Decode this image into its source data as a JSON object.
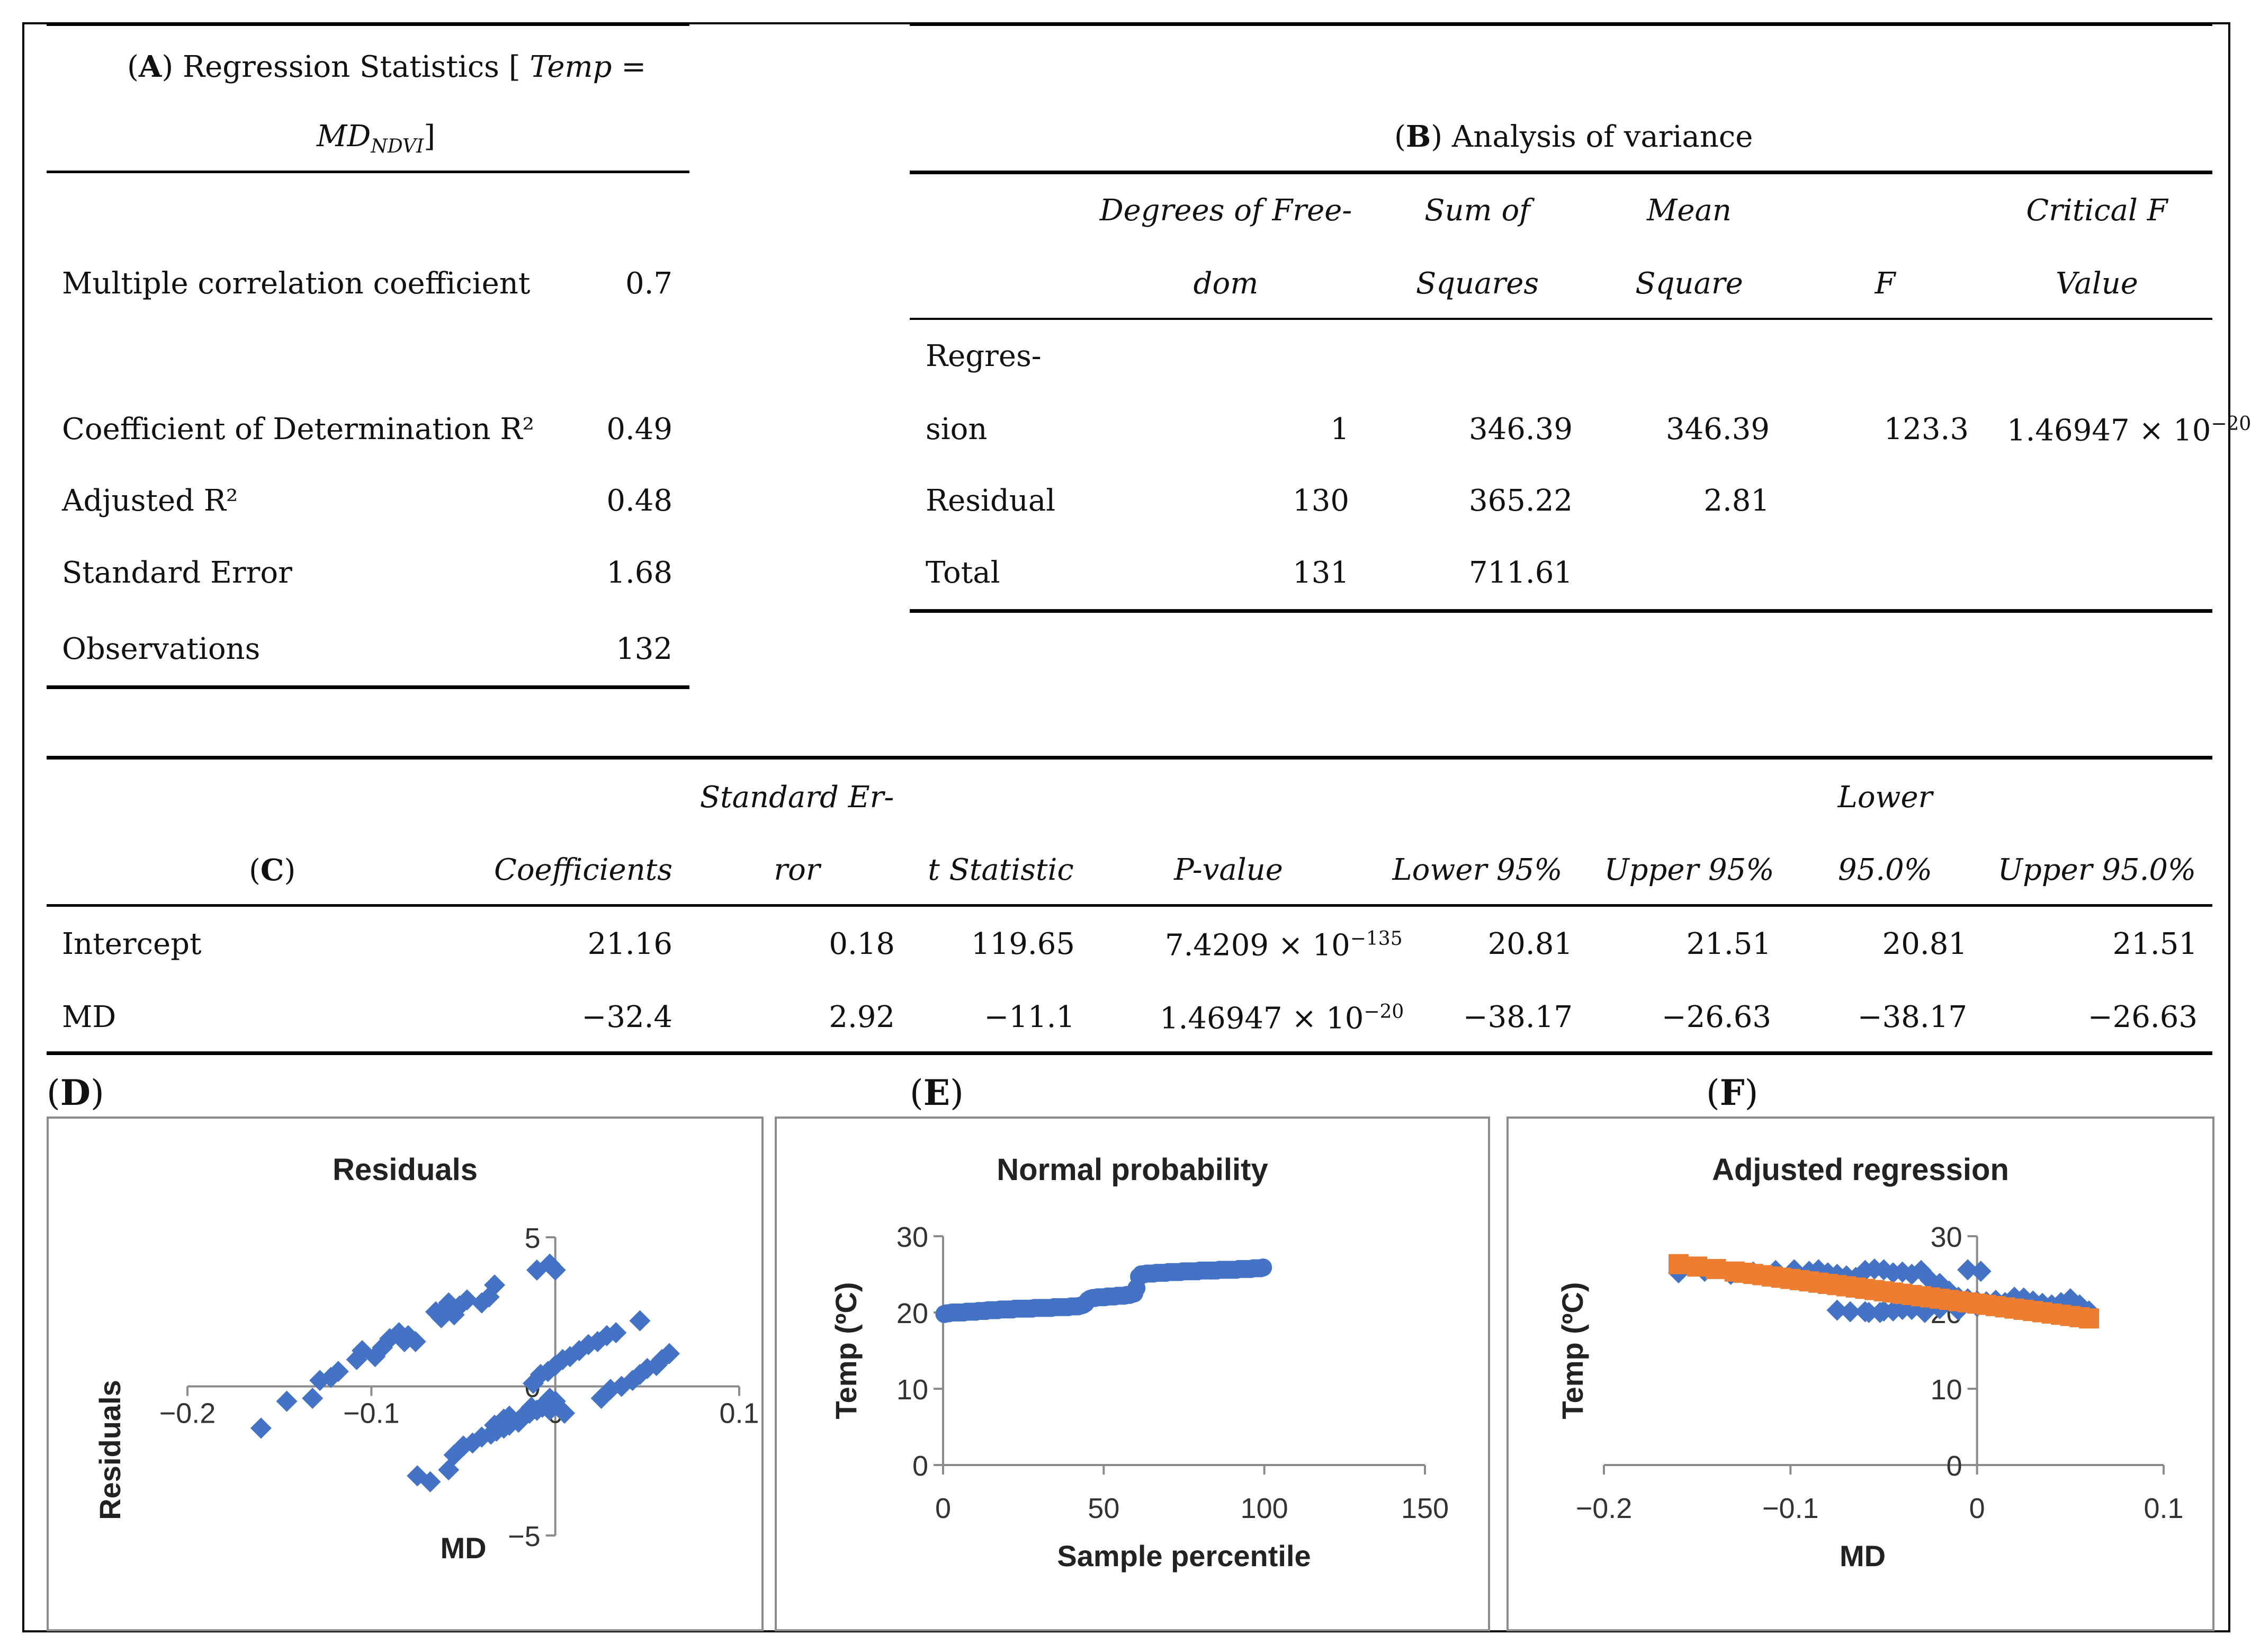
{
  "panel_a": {
    "label": "A",
    "title": "Regression Statistics",
    "formula_lhs": "Temp",
    "formula_eq": "=",
    "formula_rhs": "MD",
    "formula_sub": "NDVI",
    "rows": [
      {
        "name": "Multiple correlation coefficient",
        "value": "0.7"
      },
      {
        "name": "Coefficient of Determination R²",
        "value": "0.49"
      },
      {
        "name": "Adjusted R²",
        "value": "0.48"
      },
      {
        "name": "Standard Error",
        "value": "1.68"
      },
      {
        "name": "Observations",
        "value": "132"
      }
    ]
  },
  "panel_b": {
    "label": "B",
    "title": "Analysis of variance",
    "headers": {
      "df_line1": "Degrees of Free-",
      "df_line2": "dom",
      "ss_line1": "Sum of",
      "ss_line2": "Squares",
      "ms_line1": "Mean",
      "ms_line2": "Square",
      "f": "F",
      "cf_line1": "Critical F",
      "cf_line2": "Value"
    },
    "rows": [
      {
        "name_line1": "Regres-",
        "name_line2": "sion",
        "df": "1",
        "ss": "346.39",
        "ms": "346.39",
        "f": "123.3",
        "cf_mant": "1.46947 × 10",
        "cf_exp": "−20"
      },
      {
        "name_line1": "",
        "name_line2": "Residual",
        "df": "130",
        "ss": "365.22",
        "ms": "2.81",
        "f": "",
        "cf_mant": "",
        "cf_exp": ""
      },
      {
        "name_line1": "",
        "name_line2": "Total",
        "df": "131",
        "ss": "711.61",
        "ms": "",
        "f": "",
        "cf_mant": "",
        "cf_exp": ""
      }
    ]
  },
  "panel_c": {
    "label": "C",
    "headers": {
      "coef": "Coefficients",
      "se_line1": "Standard Er-",
      "se_line2": "ror",
      "t": "t Statistic",
      "p": "P-value",
      "l95": "Lower 95%",
      "u95": "Upper 95%",
      "l950_line1": "Lower",
      "l950_line2": "95.0%",
      "u950": "Upper 95.0%"
    },
    "rows": [
      {
        "name": "Intercept",
        "coef": "21.16",
        "se": "0.18",
        "t": "119.65",
        "p_mant": "7.4209 × 10",
        "p_exp": "−135",
        "l95": "20.81",
        "u95": "21.51",
        "l950": "20.81",
        "u950": "21.51"
      },
      {
        "name": "MD",
        "coef": "−32.4",
        "se": "2.92",
        "t": "−11.1",
        "p_mant": "1.46947 × 10",
        "p_exp": "−20",
        "l95": "−38.17",
        "u95": "−26.63",
        "l950": "−38.17",
        "u950": "−26.63"
      }
    ]
  },
  "panel_labels": {
    "d": "D",
    "e": "E",
    "f": "F"
  },
  "colors": {
    "blue": "#4472C4",
    "orange": "#ED7D31",
    "axis": "#8c8c8c"
  },
  "chart_data": [
    {
      "type": "scatter",
      "title": "Residuals",
      "xlabel": "MD",
      "ylabel": "Residuals",
      "xlim": [
        -0.2,
        0.1
      ],
      "ylim": [
        -5,
        5
      ],
      "xticks": [
        -0.2,
        -0.1,
        0,
        0.1
      ],
      "xtick_labels": [
        "−0.2",
        "−0.1",
        "0",
        "0.1"
      ],
      "yticks": [
        -5,
        0,
        5
      ],
      "ytick_labels": [
        "−5",
        "0",
        "5"
      ],
      "series": [
        {
          "color": "#4472C4",
          "marker": "diamond",
          "x": [
            -0.16,
            -0.146,
            -0.132,
            -0.128,
            -0.122,
            -0.118,
            -0.108,
            -0.105,
            -0.098,
            -0.094,
            -0.09,
            -0.085,
            -0.082,
            -0.08,
            -0.076,
            -0.065,
            -0.062,
            -0.06,
            -0.058,
            -0.055,
            -0.052,
            -0.048,
            -0.04,
            -0.036,
            -0.033,
            -0.01,
            -0.003,
            0.0,
            -0.075,
            -0.068,
            -0.058,
            -0.055,
            -0.05,
            -0.045,
            -0.04,
            -0.035,
            -0.032,
            -0.028,
            -0.025,
            -0.02,
            -0.017,
            -0.014,
            -0.01,
            -0.007,
            -0.005,
            -0.003,
            0.0,
            0.005,
            -0.012,
            -0.008,
            -0.004,
            0.0,
            0.004,
            0.008,
            0.013,
            0.018,
            0.023,
            0.028,
            0.033,
            -0.033,
            -0.028,
            -0.025,
            -0.02,
            -0.016,
            -0.013,
            -0.01,
            -0.006,
            -0.003,
            0.0,
            0.025,
            0.03,
            0.036,
            0.042,
            0.046,
            0.05,
            0.055,
            0.058,
            0.062,
            0.046
          ],
          "y": [
            -1.4,
            -0.5,
            -0.4,
            0.2,
            0.3,
            0.5,
            0.9,
            1.2,
            1.0,
            1.3,
            1.6,
            1.8,
            1.5,
            1.7,
            1.5,
            2.5,
            2.3,
            2.6,
            2.8,
            2.4,
            2.7,
            2.9,
            2.8,
            3.0,
            3.4,
            3.9,
            4.1,
            3.9,
            -3.0,
            -3.2,
            -2.8,
            -2.3,
            -2.0,
            -1.9,
            -1.7,
            -1.6,
            -1.5,
            -1.4,
            -1.3,
            -1.2,
            -1.0,
            -0.9,
            -0.8,
            -0.7,
            -0.6,
            -0.8,
            -0.5,
            -0.9,
            0.1,
            0.4,
            0.5,
            0.7,
            0.9,
            1.0,
            1.2,
            1.4,
            1.5,
            1.7,
            1.8,
            -1.3,
            -1.1,
            -1.0,
            -1.2,
            -0.9,
            -0.7,
            -0.8,
            -0.6,
            -0.4,
            -0.5,
            -0.4,
            -0.1,
            0.0,
            0.2,
            0.4,
            0.6,
            0.7,
            0.9,
            1.1,
            2.2
          ]
        }
      ]
    },
    {
      "type": "scatter",
      "title": "Normal probability",
      "xlabel": "Sample percentile",
      "ylabel": "Temp (ºC)",
      "xlim": [
        0,
        150
      ],
      "ylim": [
        0,
        30
      ],
      "xticks": [
        0,
        50,
        100,
        150
      ],
      "xtick_labels": [
        "0",
        "50",
        "100",
        "150"
      ],
      "yticks": [
        0,
        10,
        20,
        30
      ],
      "ytick_labels": [
        "0",
        "10",
        "20",
        "30"
      ],
      "series": [
        {
          "color": "#4472C4",
          "marker": "circle",
          "x": [
            0.4,
            1.1,
            1.9,
            2.7,
            3.4,
            4.2,
            4.9,
            5.7,
            6.4,
            7.2,
            8.0,
            8.7,
            9.5,
            10.2,
            11.0,
            11.7,
            12.5,
            13.3,
            14.0,
            14.8,
            15.5,
            16.3,
            17.0,
            17.8,
            18.6,
            19.3,
            20.1,
            20.8,
            21.6,
            22.3,
            23.1,
            23.9,
            24.6,
            25.4,
            26.1,
            26.9,
            27.7,
            28.4,
            29.2,
            29.9,
            30.7,
            31.4,
            32.2,
            33.0,
            33.7,
            34.5,
            35.2,
            36.0,
            36.7,
            37.5,
            38.3,
            39.0,
            39.8,
            40.5,
            41.3,
            42.0,
            42.8,
            43.6,
            44.3,
            45.1,
            45.8,
            46.6,
            47.3,
            48.1,
            48.9,
            49.6,
            50.4,
            51.1,
            51.9,
            52.7,
            53.4,
            54.2,
            54.9,
            55.7,
            56.4,
            57.2,
            58.0,
            58.7,
            59.5,
            60.2,
            61.0,
            61.7,
            62.5,
            63.3,
            64.0,
            64.8,
            65.5,
            66.3,
            67.0,
            67.8,
            68.6,
            69.3,
            70.1,
            70.8,
            71.6,
            72.3,
            73.1,
            73.9,
            74.6,
            75.4,
            76.1,
            76.9,
            77.7,
            78.4,
            79.2,
            79.9,
            80.7,
            81.4,
            82.2,
            83.0,
            83.7,
            84.5,
            85.2,
            86.0,
            86.7,
            87.5,
            88.3,
            89.0,
            89.8,
            90.5,
            91.3,
            92.0,
            92.8,
            93.6,
            94.3,
            95.1,
            95.8,
            96.6,
            97.3,
            98.1,
            98.9,
            99.6
          ],
          "y": [
            19.8,
            19.9,
            19.9,
            20.0,
            20.0,
            20.0,
            20.0,
            20.0,
            20.0,
            20.1,
            20.1,
            20.1,
            20.1,
            20.1,
            20.2,
            20.2,
            20.2,
            20.2,
            20.3,
            20.3,
            20.3,
            20.3,
            20.3,
            20.4,
            20.4,
            20.4,
            20.4,
            20.4,
            20.4,
            20.5,
            20.5,
            20.5,
            20.5,
            20.5,
            20.5,
            20.5,
            20.5,
            20.6,
            20.6,
            20.6,
            20.6,
            20.6,
            20.6,
            20.6,
            20.6,
            20.7,
            20.7,
            20.7,
            20.7,
            20.7,
            20.7,
            20.7,
            20.8,
            20.8,
            20.8,
            20.8,
            20.9,
            21.0,
            21.2,
            21.6,
            21.8,
            21.9,
            21.9,
            22.0,
            22.0,
            22.0,
            22.0,
            22.1,
            22.1,
            22.1,
            22.1,
            22.2,
            22.2,
            22.2,
            22.2,
            22.3,
            22.3,
            22.4,
            22.5,
            23.2,
            24.7,
            25.0,
            25.0,
            25.1,
            25.1,
            25.1,
            25.1,
            25.2,
            25.2,
            25.2,
            25.2,
            25.2,
            25.3,
            25.3,
            25.3,
            25.3,
            25.3,
            25.3,
            25.4,
            25.4,
            25.4,
            25.4,
            25.4,
            25.4,
            25.4,
            25.5,
            25.5,
            25.5,
            25.5,
            25.5,
            25.5,
            25.5,
            25.5,
            25.6,
            25.6,
            25.6,
            25.6,
            25.6,
            25.6,
            25.6,
            25.6,
            25.7,
            25.7,
            25.7,
            25.7,
            25.7,
            25.7,
            25.8,
            25.8,
            25.8,
            25.8,
            25.9
          ]
        }
      ]
    },
    {
      "type": "scatter",
      "title": "Adjusted regression",
      "xlabel": "MD",
      "ylabel": "Temp (ºC)",
      "xlim": [
        -0.2,
        0.1
      ],
      "ylim": [
        0,
        30
      ],
      "xticks": [
        -0.2,
        -0.1,
        0,
        0.1
      ],
      "xtick_labels": [
        "−0.2",
        "−0.1",
        "0",
        "0.1"
      ],
      "yticks": [
        0,
        10,
        20,
        30
      ],
      "ytick_labels": [
        "0",
        "10",
        "20",
        "30"
      ],
      "series": [
        {
          "color": "#4472C4",
          "marker": "diamond",
          "x": [
            -0.16,
            -0.146,
            -0.132,
            -0.12,
            -0.108,
            -0.098,
            -0.09,
            -0.085,
            -0.08,
            -0.075,
            -0.07,
            -0.065,
            -0.06,
            -0.055,
            -0.05,
            -0.045,
            -0.04,
            -0.035,
            -0.03,
            -0.025,
            -0.02,
            -0.015,
            -0.01,
            -0.005,
            0.0,
            0.005,
            0.01,
            0.015,
            0.02,
            0.025,
            0.03,
            0.035,
            0.04,
            0.045,
            0.05,
            0.055,
            0.06,
            -0.075,
            -0.068,
            -0.058,
            -0.05,
            -0.04,
            -0.03,
            -0.02,
            -0.01,
            0.0,
            -0.06,
            -0.052,
            -0.045,
            -0.035,
            -0.028,
            -0.005,
            0.002
          ],
          "y": [
            25.2,
            25.4,
            25.0,
            25.3,
            25.5,
            25.6,
            25.4,
            25.6,
            25.2,
            25.0,
            24.8,
            24.6,
            25.5,
            25.7,
            25.6,
            25.2,
            25.3,
            25.0,
            25.5,
            24.2,
            23.8,
            22.8,
            22.0,
            21.8,
            21.5,
            21.4,
            21.6,
            21.3,
            22.0,
            21.9,
            21.5,
            21.2,
            21.0,
            21.3,
            21.8,
            21.0,
            20.2,
            20.3,
            20.1,
            20.0,
            20.2,
            20.4,
            20.6,
            20.5,
            20.3,
            20.8,
            20.1,
            20.0,
            20.2,
            20.4,
            20.0,
            25.6,
            25.4
          ]
        },
        {
          "color": "#ED7D31",
          "marker": "square",
          "x": [
            -0.16,
            -0.15,
            -0.14,
            -0.13,
            -0.125,
            -0.12,
            -0.115,
            -0.11,
            -0.105,
            -0.1,
            -0.095,
            -0.09,
            -0.085,
            -0.08,
            -0.075,
            -0.07,
            -0.065,
            -0.06,
            -0.055,
            -0.05,
            -0.045,
            -0.04,
            -0.035,
            -0.03,
            -0.025,
            -0.02,
            -0.015,
            -0.01,
            -0.005,
            0.0,
            0.005,
            0.01,
            0.015,
            0.02,
            0.025,
            0.03,
            0.035,
            0.04,
            0.045,
            0.05,
            0.055,
            0.06
          ],
          "y": [
            26.34,
            26.02,
            25.7,
            25.37,
            25.21,
            25.05,
            24.89,
            24.72,
            24.56,
            24.4,
            24.24,
            24.08,
            23.91,
            23.75,
            23.59,
            23.43,
            23.27,
            23.1,
            22.94,
            22.78,
            22.62,
            22.46,
            22.29,
            22.13,
            21.97,
            21.81,
            21.65,
            21.48,
            21.32,
            21.16,
            21.0,
            20.84,
            20.67,
            20.51,
            20.35,
            20.19,
            20.03,
            19.86,
            19.7,
            19.54,
            19.38,
            19.22
          ]
        }
      ]
    }
  ]
}
